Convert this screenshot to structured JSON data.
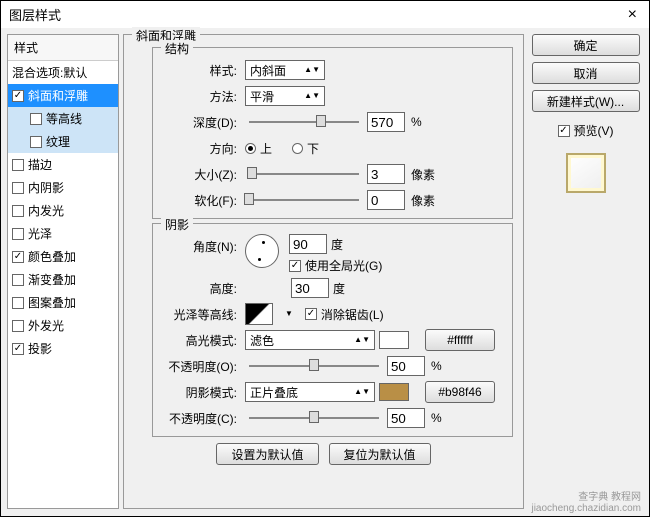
{
  "title": "图层样式",
  "close": "×",
  "sidebar": {
    "header": "样式",
    "blend_default": "混合选项:默认",
    "items": [
      {
        "label": "斜面和浮雕",
        "checked": true,
        "selected": true
      },
      {
        "label": "等高线",
        "checked": false,
        "sub": true
      },
      {
        "label": "纹理",
        "checked": false,
        "sub": true
      },
      {
        "label": "描边",
        "checked": false
      },
      {
        "label": "内阴影",
        "checked": false
      },
      {
        "label": "内发光",
        "checked": false
      },
      {
        "label": "光泽",
        "checked": false
      },
      {
        "label": "颜色叠加",
        "checked": true
      },
      {
        "label": "渐变叠加",
        "checked": false
      },
      {
        "label": "图案叠加",
        "checked": false
      },
      {
        "label": "外发光",
        "checked": false
      },
      {
        "label": "投影",
        "checked": true
      }
    ]
  },
  "panel": {
    "title": "斜面和浮雕",
    "structure": {
      "title": "结构",
      "style_label": "样式:",
      "style_value": "内斜面",
      "method_label": "方法:",
      "method_value": "平滑",
      "depth_label": "深度(D):",
      "depth_value": "570",
      "percent": "%",
      "direction_label": "方向:",
      "up": "上",
      "down": "下",
      "size_label": "大小(Z):",
      "size_value": "3",
      "px": "像素",
      "soften_label": "软化(F):",
      "soften_value": "0"
    },
    "shading": {
      "title": "阴影",
      "angle_label": "角度(N):",
      "angle_value": "90",
      "degree": "度",
      "global_light": "使用全局光(G)",
      "altitude_label": "高度:",
      "altitude_value": "30",
      "gloss_label": "光泽等高线:",
      "antialias": "消除锯齿(L)",
      "highlight_mode_label": "高光模式:",
      "highlight_mode": "滤色",
      "highlight_color": "#ffffff",
      "opacity1_label": "不透明度(O):",
      "opacity1": "50",
      "shadow_mode_label": "阴影模式:",
      "shadow_mode": "正片叠底",
      "shadow_color": "#b98f46",
      "shadow_swatch": "#b98f46",
      "opacity2_label": "不透明度(C):",
      "opacity2": "50"
    },
    "bottom": {
      "default": "设置为默认值",
      "reset": "复位为默认值"
    }
  },
  "right": {
    "ok": "确定",
    "cancel": "取消",
    "new_style": "新建样式(W)...",
    "preview": "预览(V)"
  },
  "watermark": {
    "l1": "查字典 教程网",
    "l2": "jiaocheng.chazidian.com"
  }
}
